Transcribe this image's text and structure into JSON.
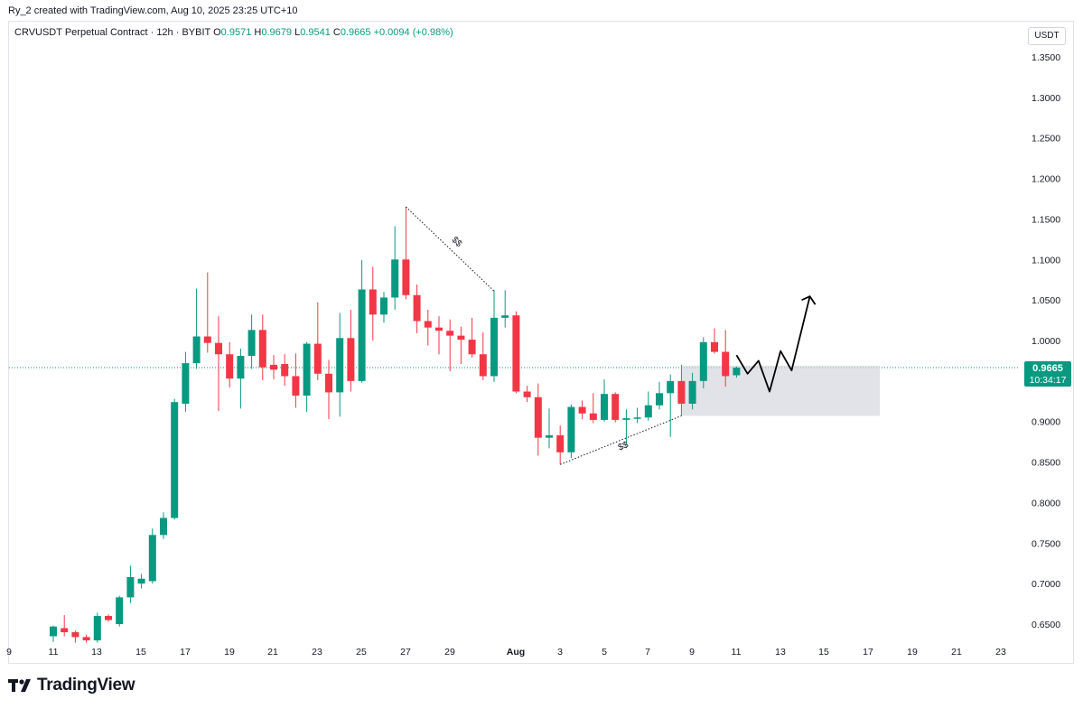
{
  "header": {
    "credit": "Ry_2 created with TradingView.com, Aug 10, 2025 23:25 UTC+10"
  },
  "legend": {
    "symbol": "CRVUSDT Perpetual Contract · 12h · BYBIT",
    "o_label": "O",
    "o_value": "0.9571",
    "h_label": "H",
    "h_value": "0.9679",
    "l_label": "L",
    "l_value": "0.9541",
    "c_label": "C",
    "c_value": "0.9665",
    "change": "+0.0094 (+0.98%)"
  },
  "price_axis": {
    "currency": "USDT",
    "last_price": "0.9665",
    "countdown": "10:34:17"
  },
  "brand": {
    "name": "TradingView"
  },
  "colors": {
    "up": "#089981",
    "down": "#f23645",
    "zone": "#d1d4dc",
    "text": "#131722"
  },
  "chart_data": {
    "type": "candlestick",
    "interval": "12h",
    "ylim": [
      0.62,
      1.39
    ],
    "y_ticks": [
      "0.6500",
      "0.7000",
      "0.7500",
      "0.8000",
      "0.8500",
      "0.9000",
      "0.9500",
      "1.0000",
      "1.0500",
      "1.1000",
      "1.1500",
      "1.2000",
      "1.2500",
      "1.3000",
      "1.3500"
    ],
    "x_ticks": [
      "9",
      "11",
      "13",
      "15",
      "17",
      "19",
      "21",
      "23",
      "25",
      "27",
      "29",
      "Aug",
      "3",
      "5",
      "7",
      "9",
      "11",
      "13",
      "15",
      "17",
      "19",
      "21",
      "23"
    ],
    "last_price_line": 0.9665,
    "candles": [
      {
        "t": "11 00:00",
        "o": 0.635,
        "h": 0.648,
        "l": 0.628,
        "c": 0.647
      },
      {
        "t": "11 12:00",
        "o": 0.645,
        "h": 0.661,
        "l": 0.635,
        "c": 0.64
      },
      {
        "t": "12 00:00",
        "o": 0.64,
        "h": 0.642,
        "l": 0.627,
        "c": 0.634
      },
      {
        "t": "12 12:00",
        "o": 0.634,
        "h": 0.637,
        "l": 0.627,
        "c": 0.63
      },
      {
        "t": "13 00:00",
        "o": 0.63,
        "h": 0.664,
        "l": 0.627,
        "c": 0.66
      },
      {
        "t": "13 12:00",
        "o": 0.66,
        "h": 0.662,
        "l": 0.653,
        "c": 0.655
      },
      {
        "t": "14 00:00",
        "o": 0.65,
        "h": 0.685,
        "l": 0.647,
        "c": 0.683
      },
      {
        "t": "14 12:00",
        "o": 0.683,
        "h": 0.722,
        "l": 0.676,
        "c": 0.708
      },
      {
        "t": "15 00:00",
        "o": 0.7,
        "h": 0.712,
        "l": 0.694,
        "c": 0.706
      },
      {
        "t": "15 12:00",
        "o": 0.703,
        "h": 0.768,
        "l": 0.7,
        "c": 0.76
      },
      {
        "t": "16 00:00",
        "o": 0.76,
        "h": 0.788,
        "l": 0.755,
        "c": 0.781
      },
      {
        "t": "16 12:00",
        "o": 0.781,
        "h": 0.928,
        "l": 0.779,
        "c": 0.924
      },
      {
        "t": "17 00:00",
        "o": 0.922,
        "h": 0.986,
        "l": 0.912,
        "c": 0.972
      },
      {
        "t": "17 12:00",
        "o": 0.972,
        "h": 1.064,
        "l": 0.965,
        "c": 1.005
      },
      {
        "t": "18 00:00",
        "o": 1.005,
        "h": 1.084,
        "l": 0.985,
        "c": 0.997
      },
      {
        "t": "18 12:00",
        "o": 0.997,
        "h": 1.03,
        "l": 0.913,
        "c": 0.983
      },
      {
        "t": "19 00:00",
        "o": 0.983,
        "h": 0.998,
        "l": 0.942,
        "c": 0.953
      },
      {
        "t": "19 12:00",
        "o": 0.953,
        "h": 0.99,
        "l": 0.916,
        "c": 0.981
      },
      {
        "t": "20 00:00",
        "o": 0.981,
        "h": 1.032,
        "l": 0.965,
        "c": 1.013
      },
      {
        "t": "20 12:00",
        "o": 1.013,
        "h": 1.032,
        "l": 0.951,
        "c": 0.967
      },
      {
        "t": "21 00:00",
        "o": 0.97,
        "h": 0.982,
        "l": 0.952,
        "c": 0.964
      },
      {
        "t": "21 12:00",
        "o": 0.971,
        "h": 0.983,
        "l": 0.944,
        "c": 0.956
      },
      {
        "t": "22 00:00",
        "o": 0.956,
        "h": 0.984,
        "l": 0.917,
        "c": 0.932
      },
      {
        "t": "22 12:00",
        "o": 0.932,
        "h": 0.998,
        "l": 0.912,
        "c": 0.996
      },
      {
        "t": "23 00:00",
        "o": 0.996,
        "h": 1.047,
        "l": 0.951,
        "c": 0.959
      },
      {
        "t": "23 12:00",
        "o": 0.959,
        "h": 0.976,
        "l": 0.903,
        "c": 0.936
      },
      {
        "t": "24 00:00",
        "o": 0.936,
        "h": 1.034,
        "l": 0.906,
        "c": 1.003
      },
      {
        "t": "24 12:00",
        "o": 1.003,
        "h": 1.038,
        "l": 0.937,
        "c": 0.95
      },
      {
        "t": "25 00:00",
        "o": 0.95,
        "h": 1.099,
        "l": 0.948,
        "c": 1.063
      },
      {
        "t": "25 12:00",
        "o": 1.063,
        "h": 1.091,
        "l": 1.0,
        "c": 1.032
      },
      {
        "t": "26 00:00",
        "o": 1.032,
        "h": 1.06,
        "l": 1.022,
        "c": 1.053
      },
      {
        "t": "26 12:00",
        "o": 1.053,
        "h": 1.141,
        "l": 1.038,
        "c": 1.1
      },
      {
        "t": "27 00:00",
        "o": 1.1,
        "h": 1.165,
        "l": 1.051,
        "c": 1.056
      },
      {
        "t": "27 12:00",
        "o": 1.056,
        "h": 1.069,
        "l": 1.009,
        "c": 1.024
      },
      {
        "t": "28 00:00",
        "o": 1.024,
        "h": 1.038,
        "l": 0.994,
        "c": 1.016
      },
      {
        "t": "28 12:00",
        "o": 1.016,
        "h": 1.03,
        "l": 0.983,
        "c": 1.012
      },
      {
        "t": "29 00:00",
        "o": 1.012,
        "h": 1.026,
        "l": 0.962,
        "c": 1.006
      },
      {
        "t": "29 12:00",
        "o": 1.006,
        "h": 1.017,
        "l": 0.971,
        "c": 1.001
      },
      {
        "t": "30 00:00",
        "o": 1.001,
        "h": 1.028,
        "l": 0.979,
        "c": 0.983
      },
      {
        "t": "30 12:00",
        "o": 0.983,
        "h": 1.01,
        "l": 0.951,
        "c": 0.956
      },
      {
        "t": "31 00:00",
        "o": 0.956,
        "h": 1.062,
        "l": 0.949,
        "c": 1.028
      },
      {
        "t": "31 12:00",
        "o": 1.028,
        "h": 1.062,
        "l": 1.016,
        "c": 1.031
      },
      {
        "t": "1 00:00",
        "o": 1.031,
        "h": 1.036,
        "l": 0.935,
        "c": 0.937
      },
      {
        "t": "1 12:00",
        "o": 0.937,
        "h": 0.944,
        "l": 0.924,
        "c": 0.93
      },
      {
        "t": "2 00:00",
        "o": 0.93,
        "h": 0.947,
        "l": 0.858,
        "c": 0.88
      },
      {
        "t": "2 12:00",
        "o": 0.88,
        "h": 0.916,
        "l": 0.867,
        "c": 0.883
      },
      {
        "t": "3 00:00",
        "o": 0.883,
        "h": 0.895,
        "l": 0.847,
        "c": 0.862
      },
      {
        "t": "3 12:00",
        "o": 0.862,
        "h": 0.921,
        "l": 0.855,
        "c": 0.918
      },
      {
        "t": "4 00:00",
        "o": 0.918,
        "h": 0.926,
        "l": 0.903,
        "c": 0.91
      },
      {
        "t": "4 12:00",
        "o": 0.91,
        "h": 0.935,
        "l": 0.898,
        "c": 0.902
      },
      {
        "t": "5 00:00",
        "o": 0.902,
        "h": 0.952,
        "l": 0.9,
        "c": 0.934
      },
      {
        "t": "5 12:00",
        "o": 0.934,
        "h": 0.936,
        "l": 0.899,
        "c": 0.902
      },
      {
        "t": "6 00:00",
        "o": 0.902,
        "h": 0.915,
        "l": 0.871,
        "c": 0.904
      },
      {
        "t": "6 12:00",
        "o": 0.904,
        "h": 0.917,
        "l": 0.898,
        "c": 0.905
      },
      {
        "t": "7 00:00",
        "o": 0.905,
        "h": 0.937,
        "l": 0.901,
        "c": 0.92
      },
      {
        "t": "7 12:00",
        "o": 0.92,
        "h": 0.949,
        "l": 0.915,
        "c": 0.935
      },
      {
        "t": "8 00:00",
        "o": 0.935,
        "h": 0.958,
        "l": 0.881,
        "c": 0.95
      },
      {
        "t": "8 12:00",
        "o": 0.95,
        "h": 0.97,
        "l": 0.907,
        "c": 0.922
      },
      {
        "t": "9 00:00",
        "o": 0.922,
        "h": 0.96,
        "l": 0.915,
        "c": 0.95
      },
      {
        "t": "9 12:00",
        "o": 0.95,
        "h": 1.004,
        "l": 0.941,
        "c": 0.998
      },
      {
        "t": "10 00:00",
        "o": 0.998,
        "h": 1.015,
        "l": 0.984,
        "c": 0.986
      },
      {
        "t": "10 12:00",
        "o": 0.986,
        "h": 1.013,
        "l": 0.943,
        "c": 0.956
      },
      {
        "t": "11 00:00",
        "o": 0.9571,
        "h": 0.9679,
        "l": 0.9541,
        "c": 0.9665
      }
    ],
    "annotations": [
      {
        "type": "liquidity-line",
        "label": "$$",
        "from": {
          "t": "27 00:00",
          "p": 1.165
        },
        "to": {
          "t": "31 00:00",
          "p": 1.061
        }
      },
      {
        "type": "liquidity-line",
        "label": "$$",
        "from": {
          "t": "3 00:00",
          "p": 0.847
        },
        "to": {
          "t": "8 12:00",
          "p": 0.907
        }
      },
      {
        "type": "zone",
        "from_t": "8 12:00",
        "to_t": "17 12:00",
        "top": 0.969,
        "bottom": 0.907
      },
      {
        "type": "projection-path",
        "points": [
          {
            "t": "11 00:00",
            "p": 0.982
          },
          {
            "t": "11 12:00",
            "p": 0.959
          },
          {
            "t": "12 00:00",
            "p": 0.975
          },
          {
            "t": "12 12:00",
            "p": 0.937
          },
          {
            "t": "13 00:00",
            "p": 0.987
          },
          {
            "t": "13 12:00",
            "p": 0.963
          },
          {
            "t": "14 00:00",
            "p": 1.06
          }
        ]
      }
    ]
  }
}
